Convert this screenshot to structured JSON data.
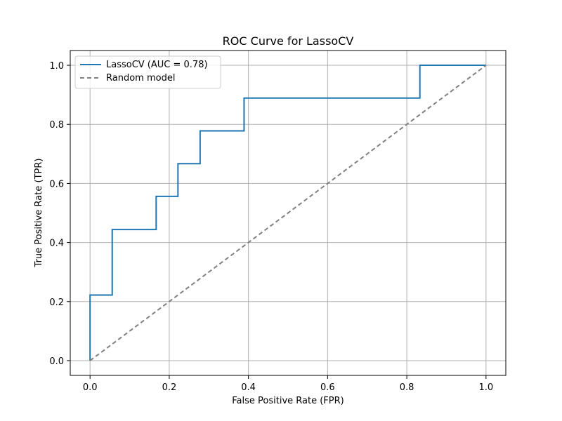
{
  "chart_data": {
    "type": "line",
    "title": "ROC Curve for LassoCV",
    "xlabel": "False Positive Rate (FPR)",
    "ylabel": "True Positive Rate (TPR)",
    "xlim": [
      -0.05,
      1.05
    ],
    "ylim": [
      -0.05,
      1.05
    ],
    "xticks": [
      0.0,
      0.2,
      0.4,
      0.6,
      0.8,
      1.0
    ],
    "yticks": [
      0.0,
      0.2,
      0.4,
      0.6,
      0.8,
      1.0
    ],
    "xtick_labels": [
      "0.0",
      "0.2",
      "0.4",
      "0.6",
      "0.8",
      "1.0"
    ],
    "ytick_labels": [
      "0.0",
      "0.2",
      "0.4",
      "0.6",
      "0.8",
      "1.0"
    ],
    "grid": true,
    "legend_position": "upper-left",
    "series": [
      {
        "name": "LassoCV (AUC = 0.78)",
        "style": "solid",
        "color": "#1f77b4",
        "x": [
          0.0,
          0.0,
          0.056,
          0.056,
          0.167,
          0.167,
          0.222,
          0.222,
          0.278,
          0.278,
          0.389,
          0.389,
          0.833,
          0.833,
          1.0
        ],
        "y": [
          0.0,
          0.222,
          0.222,
          0.444,
          0.444,
          0.556,
          0.556,
          0.667,
          0.667,
          0.778,
          0.778,
          0.889,
          0.889,
          1.0,
          1.0
        ]
      },
      {
        "name": "Random model",
        "style": "dashed",
        "color": "#808080",
        "x": [
          0.0,
          1.0
        ],
        "y": [
          0.0,
          1.0
        ]
      }
    ]
  }
}
